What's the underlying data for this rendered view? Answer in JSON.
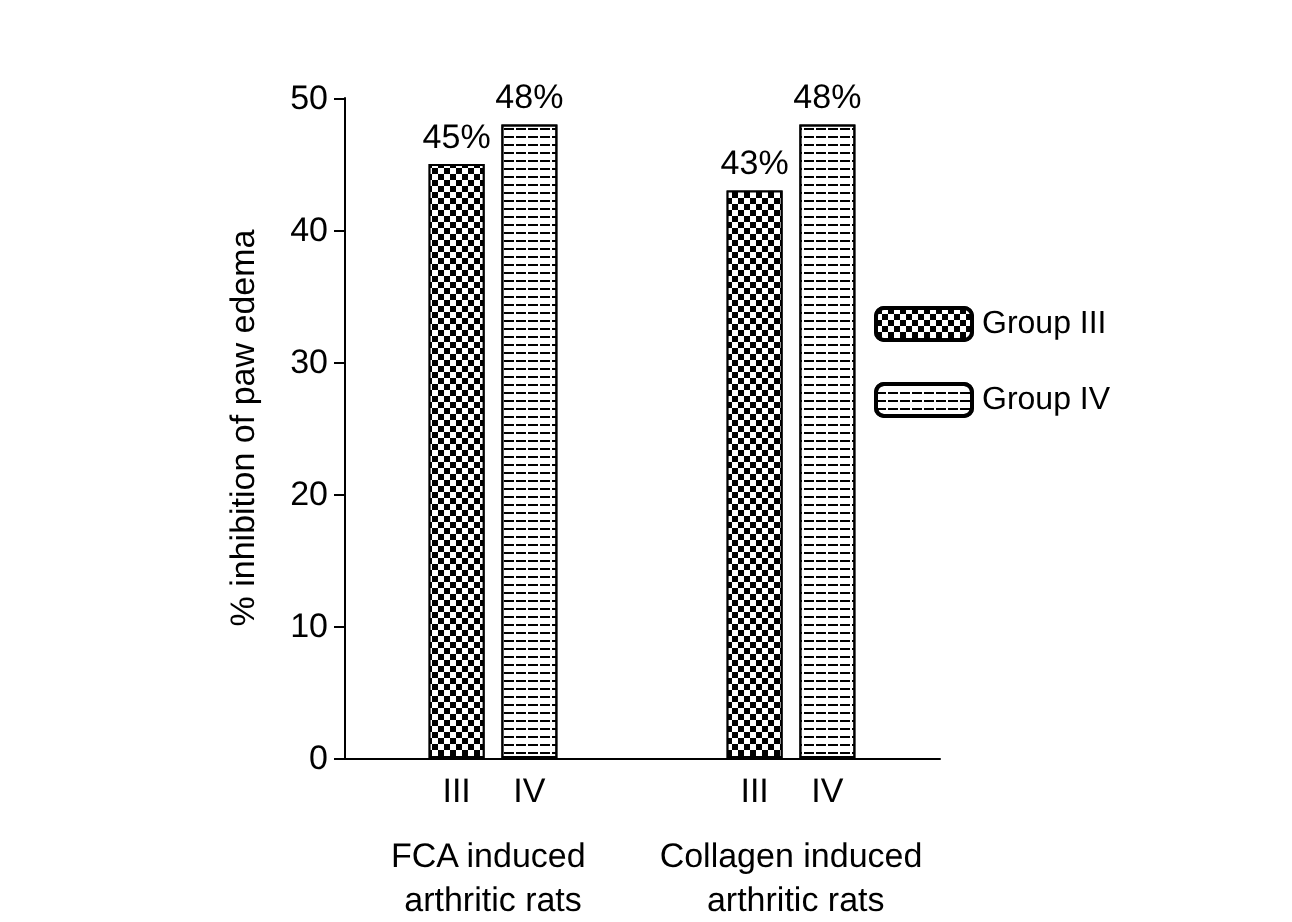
{
  "chart_data": {
    "type": "bar",
    "ylabel": "% inhibition of paw edema",
    "categories": [
      "FCA induced arthritic rats",
      "Collagen induced arthritic rats"
    ],
    "series": [
      {
        "name": "Group III",
        "color": "#000000",
        "values": [
          45,
          43
        ],
        "value_labels": [
          "45%",
          "43%"
        ]
      },
      {
        "name": "Group IV",
        "color": "#ffffff",
        "values": [
          48,
          48
        ],
        "value_labels": [
          "48%",
          "48%"
        ]
      }
    ],
    "annotations": [
      "III",
      "IV",
      "III",
      "IV"
    ],
    "ylim": [
      0,
      50
    ],
    "yticks": [
      0,
      10,
      20,
      30,
      40,
      50
    ],
    "grid": false,
    "legend": "right"
  }
}
